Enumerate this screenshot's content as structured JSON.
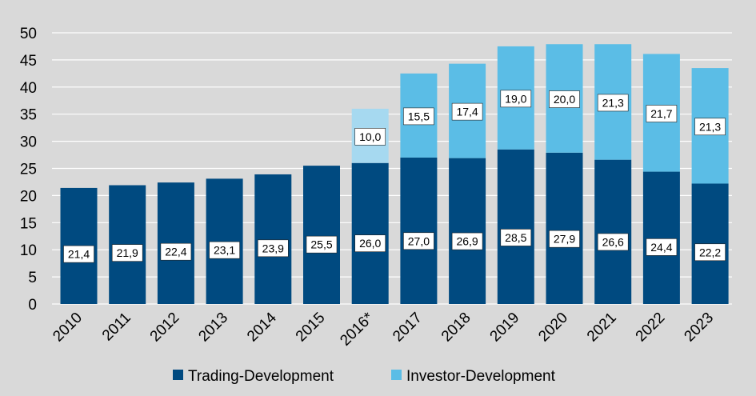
{
  "chart_data": {
    "type": "stacked-bar",
    "categories": [
      "2010",
      "2011",
      "2012",
      "2013",
      "2014",
      "2015",
      "2016*",
      "2017",
      "2018",
      "2019",
      "2020",
      "2021",
      "2022",
      "2023"
    ],
    "series": [
      {
        "name": "Trading-Development",
        "color": "#004a80",
        "values": [
          21.4,
          21.9,
          22.4,
          23.1,
          23.9,
          25.5,
          26.0,
          27.0,
          26.9,
          28.5,
          27.9,
          26.6,
          24.4,
          22.2
        ],
        "labels": [
          "21,4",
          "21,9",
          "22,4",
          "23,1",
          "23,9",
          "25,5",
          "26,0",
          "27,0",
          "26,9",
          "28,5",
          "27,9",
          "26,6",
          "24,4",
          "22,2"
        ]
      },
      {
        "name": "Investor-Development",
        "color": "#5bbde6",
        "special_color": "#a6d9f0",
        "values": [
          null,
          null,
          null,
          null,
          null,
          null,
          10.0,
          15.5,
          17.4,
          19.0,
          20.0,
          21.3,
          21.7,
          21.3
        ],
        "labels": [
          "",
          "",
          "",
          "",
          "",
          "",
          "10,0",
          "15,5",
          "17,4",
          "19,0",
          "20,0",
          "21,3",
          "21,7",
          "21,3"
        ]
      }
    ],
    "y_ticks": [
      "0",
      "5",
      "10",
      "15",
      "20",
      "25",
      "30",
      "35",
      "40",
      "45",
      "50"
    ],
    "ylim": [
      0,
      50
    ],
    "grid": true,
    "legend_position": "bottom",
    "title": "",
    "xlabel": "",
    "ylabel": ""
  }
}
